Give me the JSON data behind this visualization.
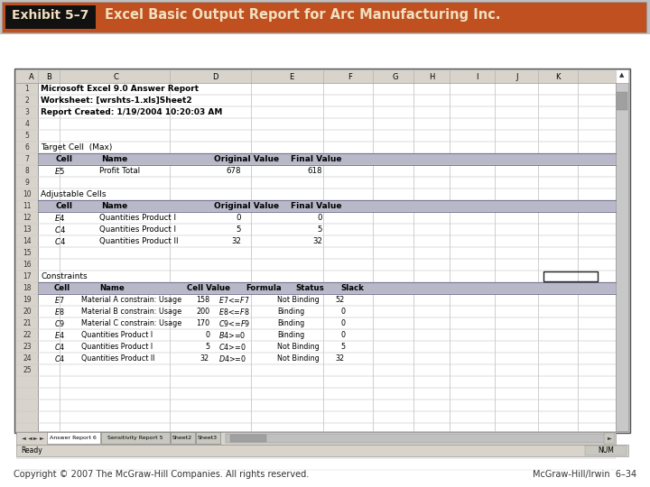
{
  "title_label": "Exhibit 5–7",
  "title_text": "Excel Basic Output Report for Arc Manufacturing Inc.",
  "title_bg": "#C05020",
  "title_label_bg": "#111111",
  "title_fg": "#F0E0C0",
  "copyright_left": "Copyright © 2007 The McGraw-Hill Companies. All rights reserved.",
  "copyright_right": "McGraw-Hill/Irwin  6–34",
  "sheet_tabs": [
    "Answer Report 6",
    "Sensitivity Report 5",
    "Sheet2",
    "Sheet3"
  ]
}
